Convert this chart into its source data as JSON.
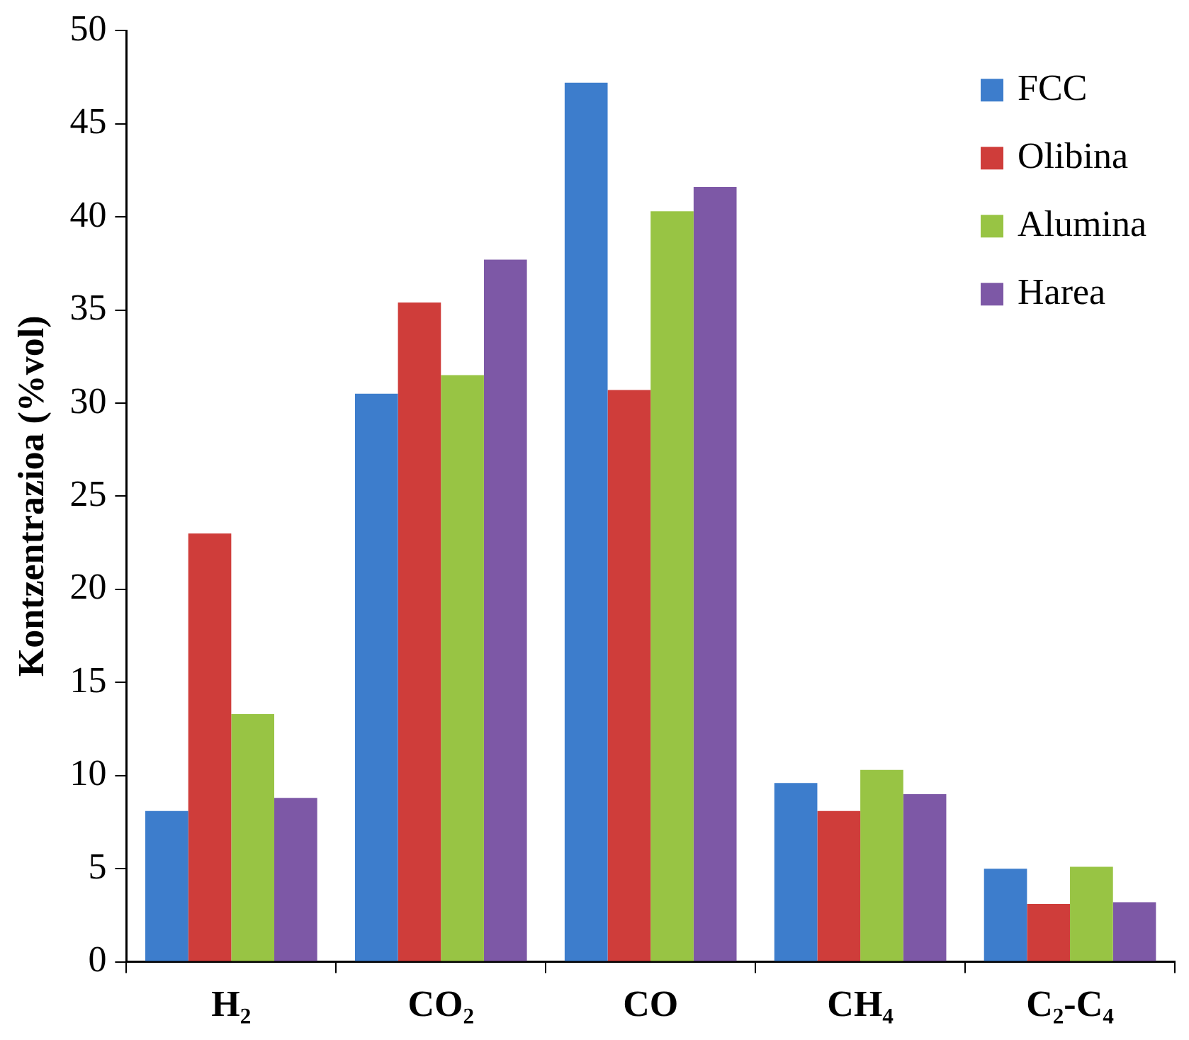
{
  "chart_data": {
    "type": "bar",
    "ylabel": "Kontzentrazioa (%vol)",
    "categories": [
      "H₂",
      "CO₂",
      "CO",
      "CH₄",
      "C₂-C₄"
    ],
    "series": [
      {
        "name": "FCC",
        "color": "#3d7dcc",
        "values": [
          8.1,
          30.5,
          47.2,
          9.6,
          5.0
        ]
      },
      {
        "name": "Olibina",
        "color": "#cf3d3a",
        "values": [
          23.0,
          35.4,
          30.7,
          8.1,
          3.1
        ]
      },
      {
        "name": "Alumina",
        "color": "#98c444",
        "values": [
          13.3,
          31.5,
          40.3,
          10.3,
          5.1
        ]
      },
      {
        "name": "Harea",
        "color": "#7d58a6",
        "values": [
          8.8,
          37.7,
          41.6,
          9.0,
          3.2
        ]
      }
    ],
    "ylim": [
      0,
      50
    ],
    "yticks": [
      0,
      5,
      10,
      15,
      20,
      25,
      30,
      35,
      40,
      45,
      50
    ],
    "grid": false,
    "legend": "top right"
  }
}
